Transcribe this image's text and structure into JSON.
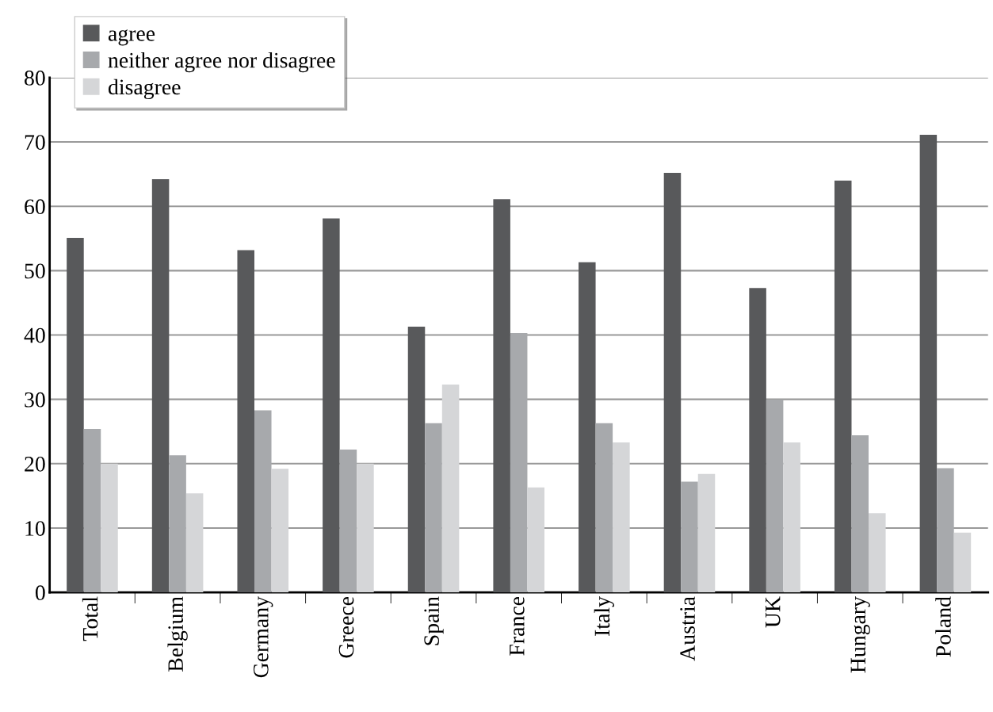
{
  "chart_data": {
    "type": "bar",
    "categories": [
      "Total",
      "Belgium",
      "Germany",
      "Greece",
      "Spain",
      "France",
      "Italy",
      "Austria",
      "UK",
      "Hungary",
      "Poland"
    ],
    "series": [
      {
        "name": "agree",
        "color": "#58595b",
        "values": [
          55.1,
          64.2,
          53.2,
          58.1,
          41.3,
          61.1,
          51.3,
          65.2,
          47.3,
          64.0,
          71.1
        ]
      },
      {
        "name": "neither agree nor disagree",
        "color": "#a7a9ac",
        "values": [
          25.4,
          21.3,
          28.3,
          22.2,
          26.3,
          40.3,
          26.3,
          17.2,
          30.0,
          24.4,
          19.3
        ]
      },
      {
        "name": "disagree",
        "color": "#d5d6d8",
        "values": [
          20.0,
          15.4,
          19.2,
          20.0,
          32.3,
          16.3,
          23.3,
          18.4,
          23.3,
          12.3,
          9.3
        ]
      }
    ],
    "ylim": [
      0,
      80
    ],
    "yticks": [
      0,
      10,
      20,
      30,
      40,
      50,
      60,
      70,
      80
    ],
    "grid": "y",
    "legend": "top left"
  }
}
